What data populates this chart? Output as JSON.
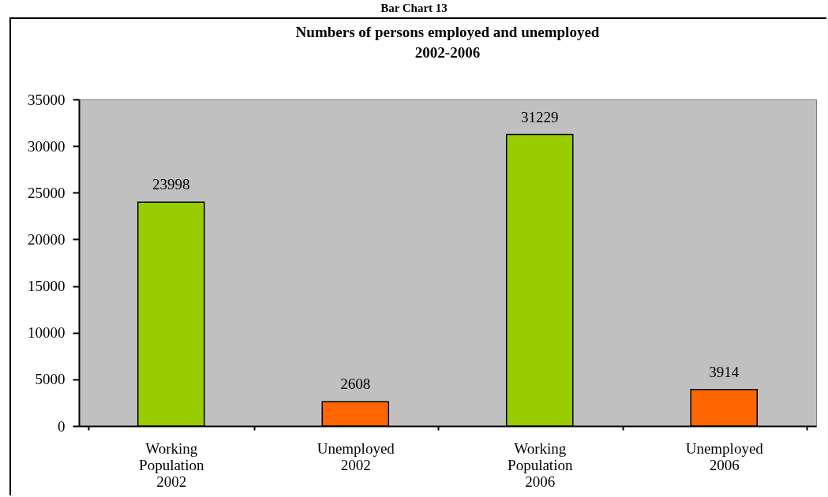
{
  "chart_data": {
    "type": "bar",
    "title": "Numbers of persons employed and unemployed\n2002-2006",
    "annotations": [
      "Bar Chart 13"
    ],
    "categories": [
      "Working Population 2002",
      "Unemployed 2002",
      "Working Population 2006",
      "Unemployed 2006"
    ],
    "values": [
      23998,
      2608,
      31229,
      3914
    ],
    "colors": [
      "#99cc00",
      "#ff6600",
      "#99cc00",
      "#ff6600"
    ],
    "ylim": [
      0,
      35000
    ],
    "yticks": [
      0,
      5000,
      10000,
      15000,
      20000,
      25000,
      30000,
      35000
    ],
    "data_labels": true,
    "grid": false
  }
}
